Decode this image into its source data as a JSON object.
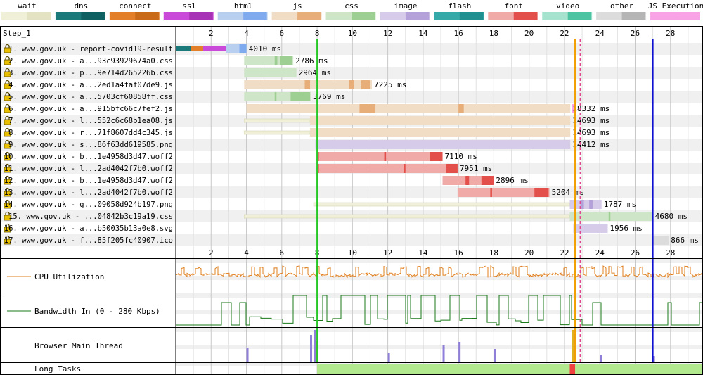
{
  "legend": [
    {
      "label": "wait",
      "color": "#f0f0d8",
      "dark": "#e3e3c3"
    },
    {
      "label": "dns",
      "color": "#1a7a7a",
      "dark": "#0f6060"
    },
    {
      "label": "connect",
      "color": "#e27f28",
      "dark": "#c86a18"
    },
    {
      "label": "ssl",
      "color": "#c94ad8",
      "dark": "#a832b5"
    },
    {
      "label": "html",
      "color": "#b8cff0",
      "dark": "#7faaed"
    },
    {
      "label": "js",
      "color": "#f1dcc6",
      "dark": "#e8ae7a"
    },
    {
      "label": "css",
      "color": "#cfe5c8",
      "dark": "#9ecf92"
    },
    {
      "label": "image",
      "color": "#d6ccea",
      "dark": "#b4a1d9"
    },
    {
      "label": "flash",
      "color": "#35a8a8",
      "dark": "#1f8f8f"
    },
    {
      "label": "font",
      "color": "#f0aaa7",
      "dark": "#e34f4a"
    },
    {
      "label": "video",
      "color": "#a6e3cf",
      "dark": "#4cc3a1"
    },
    {
      "label": "other",
      "color": "#dcdcdc",
      "dark": "#b5b5b5"
    },
    {
      "label": "JS Execution",
      "color": "#f7a3e6",
      "dark": "#f7a3e6"
    }
  ],
  "step_label": "Step_1",
  "chart_data": {
    "type": "waterfall",
    "x_unit": "s",
    "xlim": [
      0,
      29.8
    ],
    "ticks": [
      2,
      4,
      6,
      8,
      10,
      12,
      14,
      16,
      18,
      20,
      22,
      24,
      26,
      28
    ],
    "markers": [
      {
        "time": 8.0,
        "color": "#28c828"
      },
      {
        "time": 22.6,
        "color": "#f0a000"
      },
      {
        "time": 22.9,
        "color": "#e04890"
      },
      {
        "time": 27.0,
        "color": "#1010d0"
      }
    ],
    "requests": [
      {
        "label": "1. www.gov.uk - report-covid19-result",
        "duration": "4010 ms",
        "type": "html",
        "start": 0.0,
        "wait_from": 0.0,
        "end": 4.01,
        "pre": [
          {
            "type": "dns",
            "start": 0.0,
            "end": 0.85
          },
          {
            "type": "connect",
            "start": 0.85,
            "end": 1.55
          },
          {
            "type": "ssl",
            "start": 1.55,
            "end": 2.85
          }
        ],
        "chunks": [
          [
            3.6,
            4.0
          ]
        ]
      },
      {
        "label": "2. www.gov.uk - a...93c93929674a0.css",
        "duration": "2786 ms",
        "type": "css",
        "start": 3.87,
        "wait_from": 3.87,
        "end": 6.65,
        "chunks": [
          [
            5.6,
            5.75
          ],
          [
            5.9,
            6.6
          ]
        ]
      },
      {
        "label": "3. www.gov.uk - p...9e714d265226b.css",
        "duration": "2964 ms",
        "type": "css",
        "start": 3.87,
        "wait_from": 3.87,
        "end": 6.83,
        "chunks": []
      },
      {
        "label": "4. www.gov.uk - a...2ed1a4faf07de9.js",
        "duration": "7225 ms",
        "type": "js",
        "start": 3.87,
        "wait_from": 3.87,
        "end": 11.1,
        "chunks": [
          [
            7.3,
            7.6
          ],
          [
            9.8,
            10.1
          ],
          [
            10.5,
            11.0
          ]
        ]
      },
      {
        "label": "5. www.gov.uk - a...5703cf60858ff.css",
        "duration": "3769 ms",
        "type": "css",
        "start": 3.87,
        "wait_from": 3.87,
        "end": 7.64,
        "chunks": [
          [
            5.6,
            5.7
          ],
          [
            6.5,
            7.6
          ]
        ]
      },
      {
        "label": "6. www.gov.uk - a...915bfc66c7fef2.js",
        "duration": "18332 ms",
        "type": "js",
        "start": 4.0,
        "wait_from": 4.0,
        "end": 22.33,
        "chunks": [
          [
            10.4,
            11.3
          ],
          [
            16.0,
            16.3
          ]
        ],
        "js_exec": [
          [
            22.4,
            22.6
          ]
        ]
      },
      {
        "label": "7. www.gov.uk - l...552c6c68b1ea08.js",
        "duration": "14693 ms",
        "type": "js",
        "start": 3.87,
        "wait_from": 7.6,
        "end": 22.33,
        "chunks": []
      },
      {
        "label": "8. www.gov.uk - r...71f8607dd4c345.js",
        "duration": "14693 ms",
        "type": "js",
        "start": 3.87,
        "wait_from": 7.6,
        "end": 22.33,
        "chunks": []
      },
      {
        "label": "9. www.gov.uk - s...86f63dd619585.png",
        "duration": "14412 ms",
        "type": "image",
        "start": 7.9,
        "wait_from": 7.9,
        "end": 22.33,
        "chunks": []
      },
      {
        "label": "10. www.gov.uk - b...1e4958d3d47.woff2",
        "duration": "7110 ms",
        "type": "font",
        "start": 8.0,
        "wait_from": 8.0,
        "end": 15.1,
        "chunks": [
          [
            8.0,
            8.1
          ],
          [
            11.8,
            11.9
          ],
          [
            14.4,
            15.1
          ]
        ]
      },
      {
        "label": "11. www.gov.uk - l...2ad4042f7b0.woff2",
        "duration": "7951 ms",
        "type": "font",
        "start": 8.0,
        "wait_from": 8.0,
        "end": 15.95,
        "chunks": [
          [
            8.0,
            8.1
          ],
          [
            12.9,
            13.0
          ],
          [
            15.3,
            15.95
          ]
        ]
      },
      {
        "label": "12. www.gov.uk - b...1e4958d3d47.woff2",
        "duration": "2896 ms",
        "type": "font",
        "start": 15.1,
        "wait_from": 15.1,
        "end": 18.0,
        "chunks": [
          [
            16.4,
            16.6
          ],
          [
            17.3,
            18.0
          ]
        ]
      },
      {
        "label": "13. www.gov.uk - l...2ad4042f7b0.woff2",
        "duration": "5204 ms",
        "type": "font",
        "start": 15.95,
        "wait_from": 15.95,
        "end": 21.15,
        "chunks": [
          [
            17.8,
            17.9
          ],
          [
            20.3,
            21.1
          ]
        ]
      },
      {
        "label": "14. www.gov.uk - g...09058d924b197.png",
        "duration": "1787 ms",
        "type": "image",
        "start": 7.8,
        "wait_from": 22.3,
        "end": 24.1,
        "chunks": [
          [
            22.9,
            23.1
          ],
          [
            23.4,
            23.6
          ]
        ]
      },
      {
        "label": "15. www.gov.uk - ...04842b3c19a19.css",
        "duration": "4680 ms",
        "type": "css",
        "start": 3.87,
        "wait_from": 22.3,
        "end": 27.0,
        "chunks": [
          [
            24.5,
            24.6
          ]
        ]
      },
      {
        "label": "16. www.gov.uk - a...b50035b13a0e8.svg",
        "duration": "1956 ms",
        "type": "image",
        "start": 22.5,
        "wait_from": 22.5,
        "end": 24.45,
        "chunks": []
      },
      {
        "label": "17. www.gov.uk - f...85f205fc40907.ico",
        "duration": "866 ms",
        "type": "other",
        "start": 27.0,
        "wait_from": 27.0,
        "end": 27.9,
        "chunks": []
      }
    ],
    "panels": [
      {
        "key": "cpu",
        "label": "CPU Utilization",
        "color": "#e07f1e"
      },
      {
        "key": "bw",
        "label": "Bandwidth In (0 - 280 Kbps)",
        "color": "#1a7a1a"
      },
      {
        "key": "main",
        "label": "Browser Main Thread"
      },
      {
        "key": "long",
        "label": "Long Tasks",
        "color": "#b2e88e",
        "long_from": 8.0,
        "long_to": 29.8,
        "red_from": 22.3,
        "red_to": 22.6
      }
    ]
  }
}
